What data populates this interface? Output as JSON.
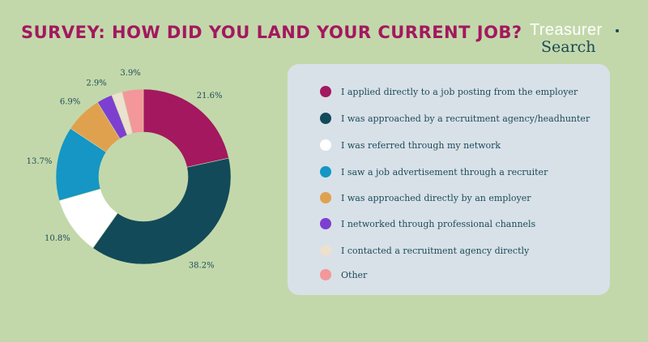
{
  "header": {
    "title": "SURVEY: HOW DID YOU LAND YOUR CURRENT JOB?"
  },
  "logo": {
    "line1": "Treasurer",
    "line2": "Search"
  },
  "chart_data": {
    "type": "pie",
    "donut": true,
    "title": "SURVEY: HOW DID YOU LAND YOUR CURRENT JOB?",
    "legend_position": "right",
    "slices": [
      {
        "label": "I applied directly to a job posting from the employer",
        "value": 21.6,
        "value_label": "21.6%",
        "color": "#a3185f"
      },
      {
        "label": "I was approached by a recruitment agency/headhunter",
        "value": 38.2,
        "value_label": "38.2%",
        "color": "#124a5a"
      },
      {
        "label": "I was referred through my network",
        "value": 10.8,
        "value_label": "10.8%",
        "color": "#ffffff"
      },
      {
        "label": "I saw a job advertisement through a recruiter",
        "value": 13.7,
        "value_label": "13.7%",
        "color": "#1596c4"
      },
      {
        "label": "I was approached directly by an employer",
        "value": 6.9,
        "value_label": "6.9%",
        "color": "#e0a14f"
      },
      {
        "label": "I networked through professional channels",
        "value": 2.9,
        "value_label": "2.9%",
        "color": "#7d3fd0"
      },
      {
        "label": "I contacted a recruitment agency directly",
        "value": 2.0,
        "value_label": "",
        "color": "#ece0cf"
      },
      {
        "label": "Other",
        "value": 3.9,
        "value_label": "3.9%",
        "color": "#f4979a"
      }
    ]
  }
}
